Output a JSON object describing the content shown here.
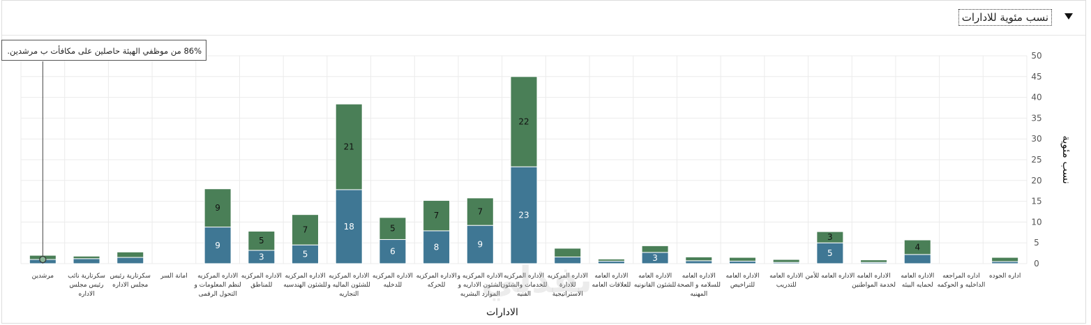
{
  "panel": {
    "title": "نسب مئوية للادارات",
    "collapse_icon": "triangle-down-icon"
  },
  "tooltip": {
    "text": "86% من موظفي الهيئة حاصلين على مكافأت ب مرشدين."
  },
  "watermark": "نفذلي",
  "colors": {
    "series1": "#3f7794",
    "series2": "#4a7f57",
    "grid": "#ebebeb",
    "axis_text": "#555555"
  },
  "chart_data": {
    "type": "bar",
    "stacked": true,
    "xlabel": "الادارات",
    "ylabel": "نسب مئوية",
    "ylim": [
      0,
      50
    ],
    "yticks": [
      0,
      5,
      10,
      15,
      20,
      25,
      30,
      35,
      40,
      45,
      50
    ],
    "grid": true,
    "categories": [
      [
        "مرشدين"
      ],
      [
        "سكرتارية نائب",
        "رئيس مجلس",
        "الاداره"
      ],
      [
        "سكرتارية رئيس",
        "مجلس الاداره"
      ],
      [
        "امانة السر"
      ],
      [
        "الاداره المركزيه",
        "لنظم المعلومات و",
        "التحول الرقمى"
      ],
      [
        "الاداره المركزيه",
        "للمناطق"
      ],
      [
        "الاداره المركزيه",
        "للشئون الهندسيه"
      ],
      [
        "الاداره المركزيه",
        "للشئون الماليه و",
        "التجاريه"
      ],
      [
        "الاداره المركزيه",
        "للدخليه"
      ],
      [
        "الاداره المركزيه",
        "للحركه"
      ],
      [
        "الاداره المركزيه و",
        "الشئون الاداريه و",
        "الموارد البشريه"
      ],
      [
        "الاداره المركزيه",
        "للخدمات والشئون",
        "الفنيه"
      ],
      [
        "الاداره المركزيه",
        "للادارة",
        "الاستراتيجية"
      ],
      [
        "الاداره العامه",
        "للعلاقات العامه"
      ],
      [
        "الاداره العامه",
        "للشئون القانونيه"
      ],
      [
        "الاداره العامه",
        "للسلامه و الصحة",
        "المهنيه"
      ],
      [
        "الاداره العامه",
        "للتراخيص"
      ],
      [
        "الاداره العامه",
        "للتدريب"
      ],
      [
        "الاداره العامه للأمن"
      ],
      [
        "الاداره العامه",
        "لخدمة المواطنين"
      ],
      [
        "الاداره العامه",
        "لحمايه البيئه"
      ],
      [
        "اداره المراجعه",
        "الداخليه و الحوكمه"
      ],
      [
        "اداره الجوده"
      ]
    ],
    "series": [
      {
        "values": [
          1,
          1.2,
          1.5,
          0,
          8.8,
          3.2,
          4.5,
          17.8,
          5.8,
          7.9,
          9.2,
          23.3,
          1.6,
          0.6,
          2.7,
          0.7,
          0.6,
          0.3,
          5,
          0.3,
          2.2,
          0,
          0.5
        ]
      },
      {
        "values": [
          1,
          0.6,
          1.3,
          0,
          9.2,
          4.6,
          7.3,
          20.6,
          5.3,
          7.3,
          6.6,
          21.7,
          2.1,
          0.5,
          1.6,
          0.9,
          0.9,
          0.7,
          2.7,
          0.6,
          3.5,
          0,
          1
        ]
      }
    ],
    "data_labels": [
      [
        null,
        null,
        null,
        null,
        "9",
        "3",
        "5",
        "18",
        "6",
        "8",
        "9",
        "23",
        null,
        null,
        "3",
        null,
        null,
        null,
        "5",
        null,
        null,
        null,
        null
      ],
      [
        null,
        null,
        null,
        null,
        "9",
        "5",
        "7",
        "21",
        "5",
        "7",
        "7",
        "22",
        null,
        null,
        null,
        null,
        null,
        null,
        "3",
        null,
        "4",
        null,
        null
      ]
    ],
    "highlight_index": 0
  }
}
